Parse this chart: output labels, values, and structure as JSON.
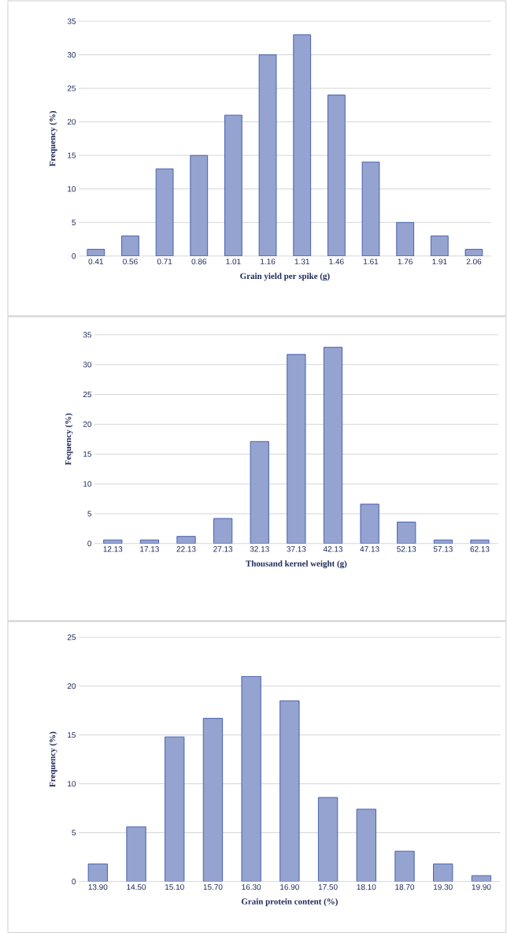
{
  "chart_data": [
    {
      "type": "bar",
      "xlabel": "Grain yield per spike (g)",
      "ylabel": "Frequency (%)",
      "categories": [
        "0.41",
        "0.56",
        "0.71",
        "0.86",
        "1.01",
        "1.16",
        "1.31",
        "1.46",
        "1.61",
        "1.76",
        "1.91",
        "2.06"
      ],
      "values": [
        1,
        3,
        13,
        15,
        21,
        30,
        33,
        24,
        14,
        5,
        3,
        1
      ],
      "color": "#95a3d0",
      "ylim": [
        0,
        35
      ],
      "yticks": [
        0,
        5,
        10,
        15,
        20,
        25,
        30,
        35
      ],
      "grid": "y"
    },
    {
      "type": "bar",
      "xlabel": "Thousand kernel weight (g)",
      "ylabel": "Fequency (%)",
      "categories": [
        "12.13",
        "17.13",
        "22.13",
        "27.13",
        "32.13",
        "37.13",
        "42.13",
        "47.13",
        "52.13",
        "57.13",
        "62.13"
      ],
      "values": [
        0.6,
        0.6,
        1.2,
        4.2,
        17.1,
        31.7,
        32.9,
        6.6,
        3.6,
        0.6,
        0.6
      ],
      "color": "#95a3d0",
      "ylim": [
        0,
        35
      ],
      "yticks": [
        0,
        5,
        10,
        15,
        20,
        25,
        30,
        35
      ],
      "grid": "y"
    },
    {
      "type": "bar",
      "xlabel": "Grain protein content (%)",
      "ylabel": "Frequency (%)",
      "categories": [
        "13.90",
        "14.50",
        "15.10",
        "15.70",
        "16.30",
        "16.90",
        "17.50",
        "18.10",
        "18.70",
        "19.30",
        "19.90"
      ],
      "values": [
        1.8,
        5.6,
        14.8,
        16.7,
        21.0,
        18.5,
        8.6,
        7.4,
        3.1,
        1.8,
        0.6
      ],
      "color": "#95a3d0",
      "ylim": [
        0,
        25
      ],
      "yticks": [
        0,
        5,
        10,
        15,
        20,
        25
      ],
      "grid": "y"
    }
  ]
}
